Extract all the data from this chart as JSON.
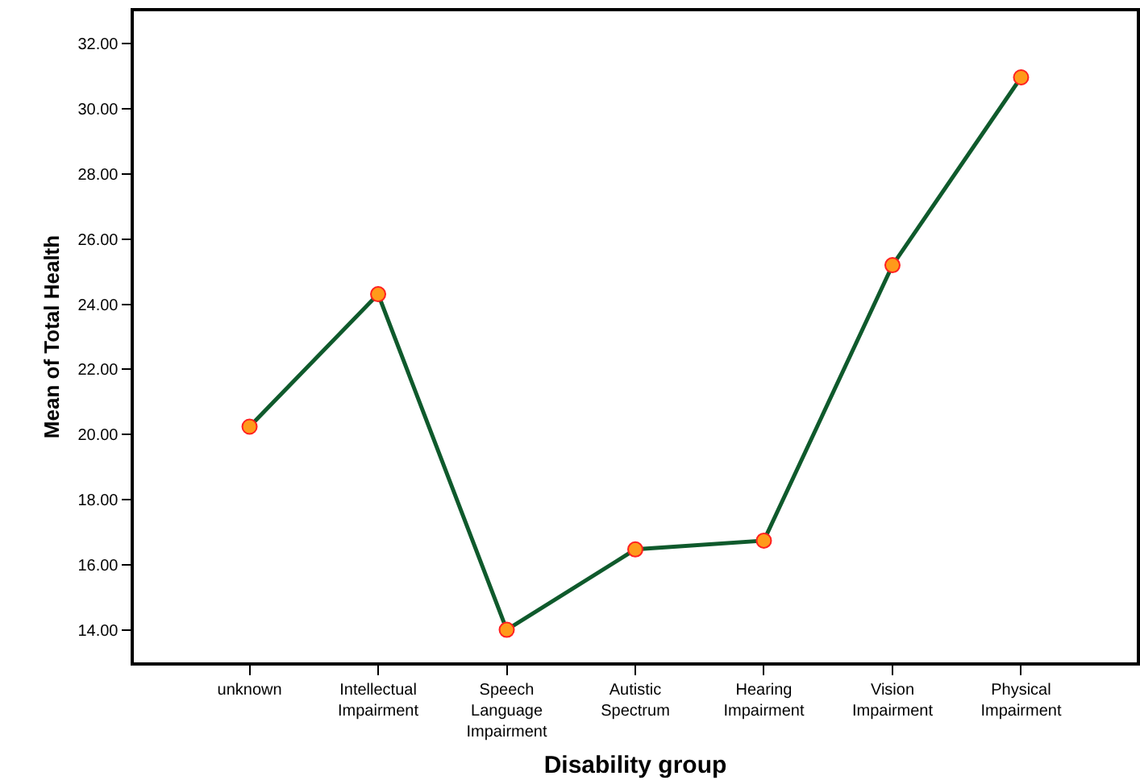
{
  "chart_data": {
    "type": "line",
    "xlabel": "Disability group",
    "ylabel": "Mean of Total Health",
    "categories": [
      "unknown",
      "Intellectual\nImpairment",
      "Speech\nLanguage\nImpairment",
      "Autistic\nSpectrum",
      "Hearing\nImpairment",
      "Vision\nImpairment",
      "Physical\nImpairment"
    ],
    "series": [
      {
        "color": "#0f5a2c",
        "values": [
          20.24,
          24.31,
          14.0,
          16.47,
          16.74,
          25.2,
          30.97
        ]
      }
    ],
    "ylim": [
      13,
      33
    ],
    "yticks": [
      {
        "value": 14,
        "label": "14.00"
      },
      {
        "value": 16,
        "label": "16.00"
      },
      {
        "value": 18,
        "label": "18.00"
      },
      {
        "value": 20,
        "label": "20.00"
      },
      {
        "value": 22,
        "label": "22.00"
      },
      {
        "value": 24,
        "label": "24.00"
      },
      {
        "value": 26,
        "label": "26.00"
      },
      {
        "value": 28,
        "label": "28.00"
      },
      {
        "value": 30,
        "label": "30.00"
      },
      {
        "value": 32,
        "label": "32.00"
      }
    ],
    "grid": false,
    "marker": "circle",
    "line_style": "solid"
  }
}
